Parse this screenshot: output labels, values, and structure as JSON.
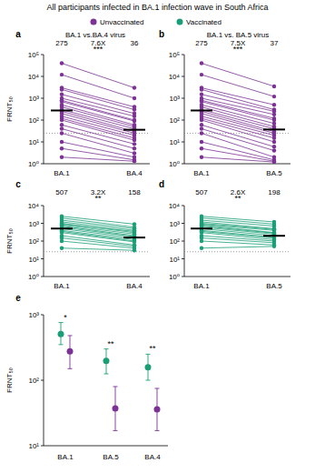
{
  "title": "All participants infected in BA.1 infection wave in South Africa",
  "chart_data": [
    {
      "type": "line",
      "panel": "a",
      "title": "BA.1 vs.BA.4 virus",
      "ylabel": "FRNT₅₀",
      "categories": [
        "BA.1",
        "BA.4"
      ],
      "color": "#7b3294",
      "log": "y",
      "grid": false,
      "ylim": [
        1,
        100000
      ],
      "yticks": [
        {
          "value": 1,
          "label": "10⁰"
        },
        {
          "value": 10,
          "label": "10¹"
        },
        {
          "value": 100,
          "label": "10²"
        },
        {
          "value": 1000,
          "label": "10³"
        },
        {
          "value": 10000,
          "label": "10⁴"
        },
        {
          "value": 100000,
          "label": "10⁵"
        }
      ],
      "means": [
        275,
        36
      ],
      "fold_change": "7.6X",
      "significance": "***",
      "detection_limit": 25,
      "series": [
        {
          "values": [
            40000,
            3000
          ]
        },
        {
          "values": [
            12000,
            1000
          ]
        },
        {
          "values": [
            3000,
            400
          ]
        },
        {
          "values": [
            2500,
            300
          ]
        },
        {
          "values": [
            1500,
            200
          ]
        },
        {
          "values": [
            1000,
            150
          ]
        },
        {
          "values": [
            800,
            100
          ]
        },
        {
          "values": [
            700,
            90
          ]
        },
        {
          "values": [
            500,
            60
          ]
        },
        {
          "values": [
            400,
            50
          ]
        },
        {
          "values": [
            300,
            40
          ]
        },
        {
          "values": [
            250,
            30
          ]
        },
        {
          "values": [
            200,
            25
          ]
        },
        {
          "values": [
            150,
            20
          ]
        },
        {
          "values": [
            120,
            15
          ]
        },
        {
          "values": [
            100,
            12
          ]
        },
        {
          "values": [
            60,
            8
          ]
        },
        {
          "values": [
            40,
            5
          ]
        },
        {
          "values": [
            25,
            3
          ]
        },
        {
          "values": [
            10,
            2
          ]
        },
        {
          "values": [
            5,
            1.5
          ]
        },
        {
          "values": [
            2,
            1.3
          ]
        }
      ]
    },
    {
      "type": "line",
      "panel": "b",
      "title": "BA.1 vs. BA.5 virus",
      "categories": [
        "BA.1",
        "BA.5"
      ],
      "color": "#7b3294",
      "log": "y",
      "grid": false,
      "ylim": [
        1,
        100000
      ],
      "yticks": [
        {
          "value": 1,
          "label": "10⁰"
        },
        {
          "value": 10,
          "label": "10¹"
        },
        {
          "value": 100,
          "label": "10²"
        },
        {
          "value": 1000,
          "label": "10³"
        },
        {
          "value": 10000,
          "label": "10⁴"
        },
        {
          "value": 100000,
          "label": "10⁵"
        }
      ],
      "means": [
        275,
        37
      ],
      "fold_change": "7.5X",
      "significance": "***",
      "detection_limit": 25,
      "series": [
        {
          "values": [
            40000,
            3500
          ]
        },
        {
          "values": [
            12000,
            1200
          ]
        },
        {
          "values": [
            3000,
            500
          ]
        },
        {
          "values": [
            2500,
            300
          ]
        },
        {
          "values": [
            1500,
            250
          ]
        },
        {
          "values": [
            1000,
            180
          ]
        },
        {
          "values": [
            800,
            120
          ]
        },
        {
          "values": [
            700,
            100
          ]
        },
        {
          "values": [
            500,
            70
          ]
        },
        {
          "values": [
            400,
            50
          ]
        },
        {
          "values": [
            300,
            40
          ]
        },
        {
          "values": [
            250,
            30
          ]
        },
        {
          "values": [
            200,
            25
          ]
        },
        {
          "values": [
            150,
            20
          ]
        },
        {
          "values": [
            120,
            15
          ]
        },
        {
          "values": [
            100,
            10
          ]
        },
        {
          "values": [
            60,
            6
          ]
        },
        {
          "values": [
            40,
            4
          ]
        },
        {
          "values": [
            25,
            2
          ]
        },
        {
          "values": [
            10,
            1.5
          ]
        },
        {
          "values": [
            5,
            1.3
          ]
        },
        {
          "values": [
            2,
            1.2
          ]
        }
      ]
    },
    {
      "type": "line",
      "panel": "c",
      "ylabel": "FRNT₅₀",
      "categories": [
        "BA.1",
        "BA.4"
      ],
      "color": "#1b9e77",
      "log": "y",
      "grid": false,
      "ylim": [
        1,
        10000
      ],
      "yticks": [
        {
          "value": 1,
          "label": "10⁰"
        },
        {
          "value": 10,
          "label": "10¹"
        },
        {
          "value": 100,
          "label": "10²"
        },
        {
          "value": 1000,
          "label": "10³"
        },
        {
          "value": 10000,
          "label": "10⁴"
        }
      ],
      "means": [
        507,
        158
      ],
      "fold_change": "3.2X",
      "significance": "**",
      "detection_limit": 25,
      "series": [
        {
          "values": [
            2500,
            900
          ]
        },
        {
          "values": [
            2000,
            600
          ]
        },
        {
          "values": [
            1500,
            500
          ]
        },
        {
          "values": [
            1200,
            400
          ]
        },
        {
          "values": [
            1000,
            300
          ]
        },
        {
          "values": [
            900,
            350
          ]
        },
        {
          "values": [
            800,
            250
          ]
        },
        {
          "values": [
            700,
            200
          ]
        },
        {
          "values": [
            600,
            180
          ]
        },
        {
          "values": [
            500,
            150
          ]
        },
        {
          "values": [
            400,
            120
          ]
        },
        {
          "values": [
            350,
            100
          ]
        },
        {
          "values": [
            300,
            90
          ]
        },
        {
          "values": [
            200,
            60
          ]
        },
        {
          "values": [
            150,
            50
          ]
        },
        {
          "values": [
            100,
            40
          ]
        },
        {
          "values": [
            40,
            30
          ]
        }
      ]
    },
    {
      "type": "line",
      "panel": "d",
      "categories": [
        "BA.1",
        "BA.5"
      ],
      "color": "#1b9e77",
      "log": "y",
      "grid": false,
      "ylim": [
        1,
        10000
      ],
      "yticks": [
        {
          "value": 1,
          "label": "10⁰"
        },
        {
          "value": 10,
          "label": "10¹"
        },
        {
          "value": 100,
          "label": "10²"
        },
        {
          "value": 1000,
          "label": "10³"
        },
        {
          "value": 10000,
          "label": "10⁴"
        }
      ],
      "means": [
        507,
        198
      ],
      "fold_change": "2.6X",
      "significance": "**",
      "detection_limit": 25,
      "series": [
        {
          "values": [
            2500,
            1200
          ]
        },
        {
          "values": [
            2000,
            900
          ]
        },
        {
          "values": [
            1500,
            700
          ]
        },
        {
          "values": [
            1200,
            500
          ]
        },
        {
          "values": [
            1000,
            450
          ]
        },
        {
          "values": [
            900,
            400
          ]
        },
        {
          "values": [
            800,
            300
          ]
        },
        {
          "values": [
            700,
            280
          ]
        },
        {
          "values": [
            600,
            250
          ]
        },
        {
          "values": [
            500,
            200
          ]
        },
        {
          "values": [
            400,
            160
          ]
        },
        {
          "values": [
            350,
            150
          ]
        },
        {
          "values": [
            300,
            120
          ]
        },
        {
          "values": [
            200,
            100
          ]
        },
        {
          "values": [
            150,
            80
          ]
        },
        {
          "values": [
            100,
            60
          ]
        },
        {
          "values": [
            40,
            50
          ]
        }
      ]
    },
    {
      "type": "scatter",
      "panel": "e",
      "ylabel": "FRNT₅₀",
      "categories": [
        "BA.1",
        "BA.5",
        "BA.4"
      ],
      "log": "y",
      "grid": false,
      "legend": "top",
      "ylim": [
        10,
        1000
      ],
      "yticks": [
        {
          "value": 10,
          "label": "10¹"
        },
        {
          "value": 100,
          "label": "10²"
        },
        {
          "value": 1000,
          "label": "10³"
        }
      ],
      "significance": [
        "*",
        "**",
        "**"
      ],
      "series": [
        {
          "name": "Unvaccinated",
          "color": "#7b3294",
          "values": [
            275,
            37,
            36
          ],
          "ci_low": [
            150,
            17,
            17
          ],
          "ci_high": [
            480,
            80,
            75
          ]
        },
        {
          "name": "Vaccinated",
          "color": "#1b9e77",
          "values": [
            507,
            198,
            158
          ],
          "ci_low": [
            350,
            125,
            100
          ],
          "ci_high": [
            760,
            300,
            250
          ]
        }
      ]
    }
  ]
}
